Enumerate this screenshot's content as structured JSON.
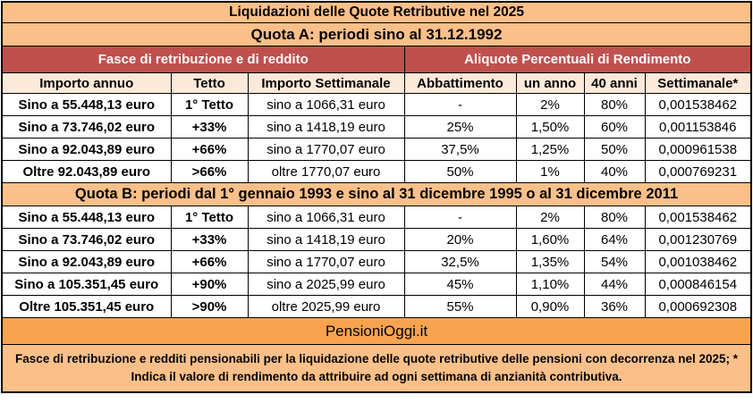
{
  "title": "Liquidazioni delle Quote Retributive nel 2025",
  "quota_a_title": "Quota A: periodi sino al 31.12.1992",
  "group_headers": {
    "left": "Fasce di retribuzione e di reddito",
    "right": "Aliquote Percentuali di Rendimento"
  },
  "column_headers": [
    "Importo annuo",
    "Tetto",
    "Importo Settimanale",
    "Abbattimento",
    "un anno",
    "40 anni",
    "Settimanale*"
  ],
  "quota_a_rows": [
    [
      "Sino a 55.448,13 euro",
      "1° Tetto",
      "sino a 1066,31 euro",
      "-",
      "2%",
      "80%",
      "0,001538462"
    ],
    [
      "Sino a 73.746,02 euro",
      "+33%",
      "sino a 1418,19 euro",
      "25%",
      "1,50%",
      "60%",
      "0,001153846"
    ],
    [
      "Sino a 92.043,89 euro",
      "+66%",
      "sino a 1770,07 euro",
      "37,5%",
      "1,25%",
      "50%",
      "0,000961538"
    ],
    [
      "Oltre 92.043,89 euro",
      ">66%",
      "oltre 1770,07 euro",
      "50%",
      "1%",
      "40%",
      "0,000769231"
    ]
  ],
  "quota_b_title": "Quota B: periodi dal 1° gennaio 1993 e sino al 31 dicembre 1995 o al 31 dicembre 2011",
  "quota_b_rows": [
    [
      "Sino a 55.448,13 euro",
      "1° Tetto",
      "sino a 1066,31 euro",
      "-",
      "2%",
      "80%",
      "0,001538462"
    ],
    [
      "Sino a 73.746,02 euro",
      "+33%",
      "sino a 1418,19 euro",
      "20%",
      "1,60%",
      "64%",
      "0,001230769"
    ],
    [
      "Sino a 92.043,89 euro",
      "+66%",
      "sino a 1770,07 euro",
      "32,5%",
      "1,35%",
      "54%",
      "0,001038462"
    ],
    [
      "Sino a 105.351,45 euro",
      "+90%",
      "sino a 2025,99 euro",
      "45%",
      "1,10%",
      "44%",
      "0,000846154"
    ],
    [
      "Oltre 105.351,45 euro",
      ">90%",
      "oltre 2025,99 euro",
      "55%",
      "0,90%",
      "36%",
      "0,000692308"
    ]
  ],
  "source": "PensioniOggi.it",
  "note": "Fasce di retribuzione e redditi pensionabili per la liquidazione delle quote retributive delle pensioni con decorrenza nel 2025; * Indica il valore di rendimento da attribuire ad ogni settimana di anzianità contributiva.",
  "colors": {
    "section_bg": "#fbc089",
    "header_red": "#c0504d",
    "column_header_bg": "#fde9d9",
    "source_bg": "#f8a44f"
  }
}
